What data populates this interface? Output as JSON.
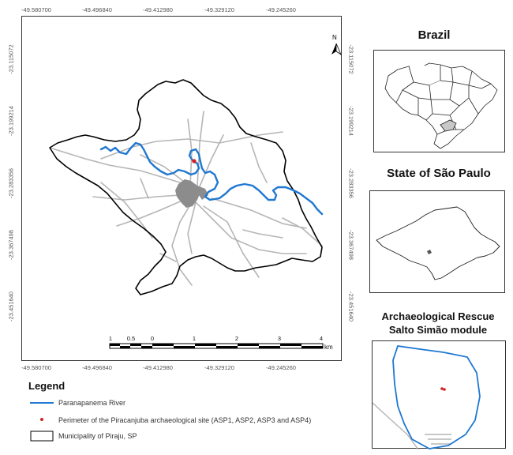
{
  "main_map": {
    "coords_top": [
      "-49.580700",
      "-49.496840",
      "-49.412980",
      "-49.329120",
      "-49.245260"
    ],
    "coords_bottom": [
      "-49.580700",
      "-49.496840",
      "-49.412980",
      "-49.329120",
      "-49.245260"
    ],
    "coords_left": [
      "-23.115072",
      "-23.199214",
      "-23.283356",
      "-23.367498",
      "-23.451640"
    ],
    "coords_right": [
      "-23.115072",
      "-23.199214",
      "-23.283356",
      "-23.367498",
      "-23.451640"
    ],
    "north_label": "N",
    "scale_labels": [
      "1",
      "0.5",
      "0",
      "1",
      "2",
      "3",
      "4"
    ],
    "scale_unit": "km"
  },
  "insets": {
    "brazil_title": "Brazil",
    "sao_paulo_title": "State of São Paulo",
    "rescue_title_line1": "Archaeological Rescue",
    "rescue_title_line2": "Salto Simão module"
  },
  "legend": {
    "title": "Legend",
    "items": [
      {
        "label": "Paranapanema River",
        "symbol": "line",
        "color": "#1f78d1"
      },
      {
        "label": "Perimeter of the Piracanjuba archaeological site (ASP1, ASP2, ASP3 and ASP4)",
        "symbol": "dot",
        "color": "#d62020"
      },
      {
        "label": "Municipality of Piraju, SP",
        "symbol": "box",
        "color": "#000000"
      }
    ]
  },
  "colors": {
    "river": "#1f78d1",
    "site": "#d62020",
    "roads": "#b5b5b5",
    "urban": "#8c8c8c",
    "boundary": "#000000"
  }
}
